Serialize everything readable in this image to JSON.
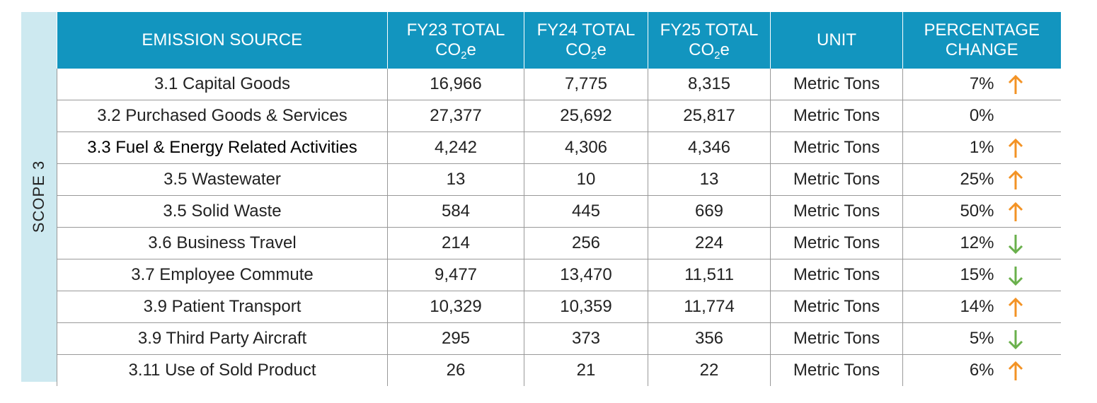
{
  "side_label": "SCOPE 3",
  "header": [
    {
      "text": "EMISSION SOURCE"
    },
    {
      "line1": "FY23 TOTAL",
      "co": "CO",
      "sub": "2",
      "e": "e"
    },
    {
      "line1": "FY24 TOTAL",
      "co": "CO",
      "sub": "2",
      "e": "e"
    },
    {
      "line1": "FY25 TOTAL",
      "co": "CO",
      "sub": "2",
      "e": "e"
    },
    {
      "text": "UNIT"
    },
    {
      "line1": "PERCENTAGE",
      "line2": "CHANGE"
    }
  ],
  "colors": {
    "up": "#f39325",
    "down": "#6ab04c"
  },
  "rows": [
    {
      "cells": [
        "3.1 Capital Goods",
        "16,966",
        "7,775",
        "8,315",
        "Metric Tons",
        "7%"
      ],
      "trend": "up"
    },
    {
      "cells": [
        "3.2 Purchased Goods & Services",
        "27,377",
        "25,692",
        "25,817",
        "Metric Tons",
        "0%"
      ]
    },
    {
      "cells": [
        "3.3 Fuel & Energy Related Activities",
        "4,242",
        "4,306",
        "4,346",
        "Metric Tons",
        "1%"
      ],
      "trend": "up"
    },
    {
      "cells": [
        "3.5 Wastewater",
        "13",
        "10",
        "13",
        "Metric Tons",
        "25%"
      ],
      "trend": "up"
    },
    {
      "cells": [
        "3.5 Solid Waste",
        "584",
        "445",
        "669",
        "Metric Tons",
        "50%"
      ],
      "trend": "up"
    },
    {
      "cells": [
        "3.6 Business Travel",
        "214",
        "256",
        "224",
        "Metric Tons",
        "12%"
      ],
      "trend": "down"
    },
    {
      "cells": [
        "3.7 Employee Commute",
        "9,477",
        "13,470",
        "11,511",
        "Metric Tons",
        "15%"
      ],
      "trend": "down"
    },
    {
      "cells": [
        "3.9 Patient Transport",
        "10,329",
        "10,359",
        "11,774",
        "Metric Tons",
        "14%"
      ],
      "trend": "up"
    },
    {
      "cells": [
        "3.9 Third Party Aircraft",
        "295",
        "373",
        "356",
        "Metric Tons",
        "5%"
      ],
      "trend": "down"
    },
    {
      "cells": [
        "3.11 Use of Sold Product",
        "26",
        "21",
        "22",
        "Metric Tons",
        "6%"
      ],
      "trend": "up"
    }
  ]
}
